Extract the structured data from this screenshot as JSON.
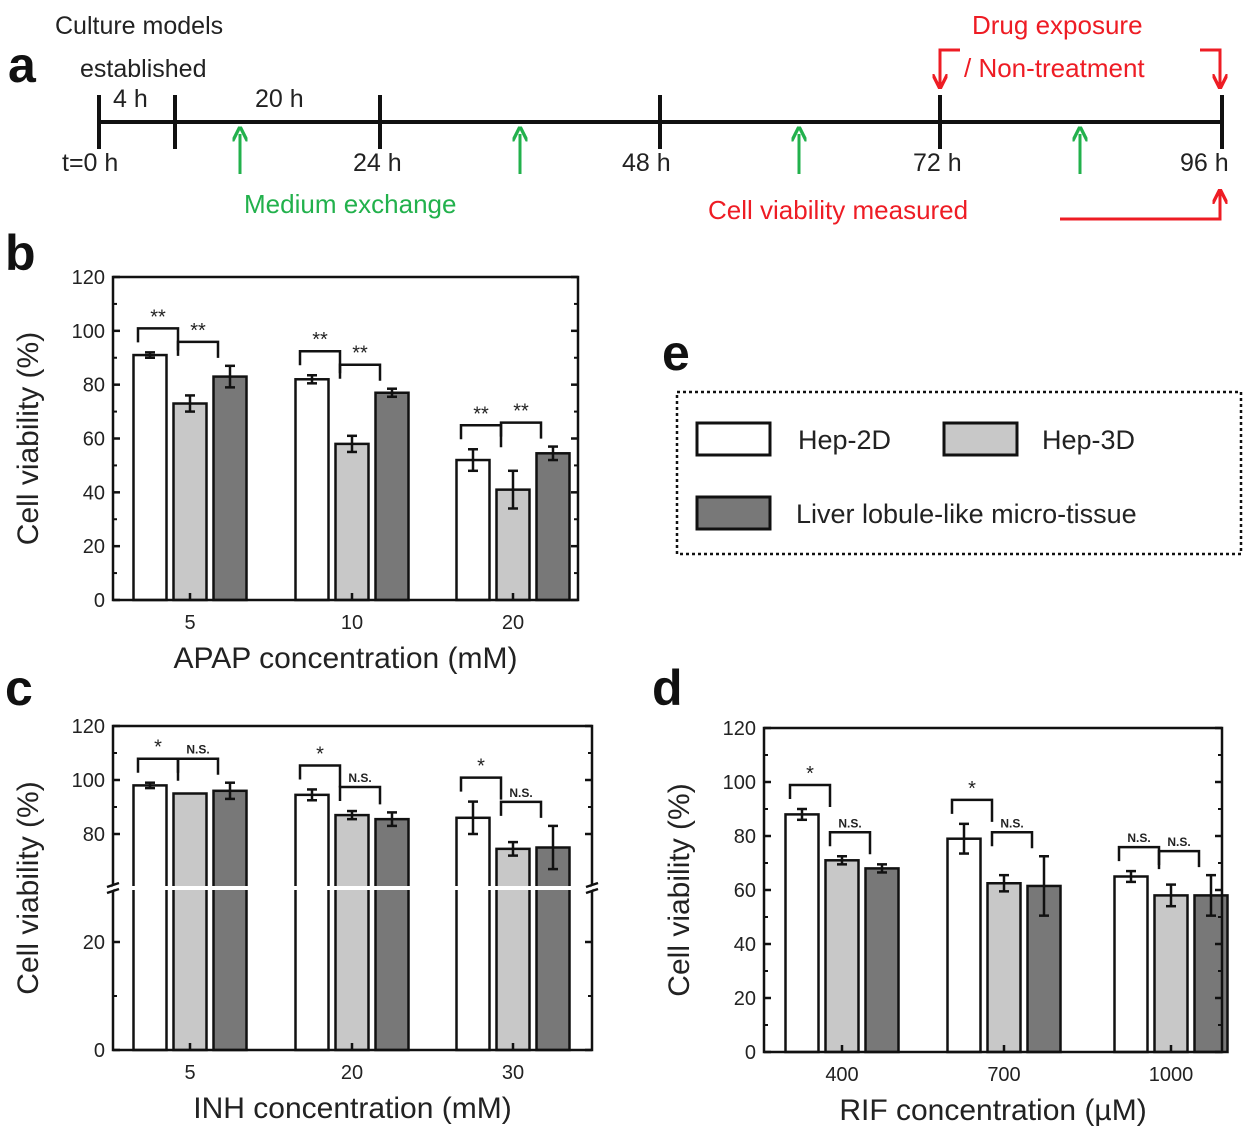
{
  "panels": {
    "a": "a",
    "b": "b",
    "c": "c",
    "d": "d",
    "e": "e"
  },
  "timeline": {
    "header_line1": "Culture models",
    "header_line2": "established",
    "interval_4h": "4 h",
    "interval_20h": "20 h",
    "ticks": [
      "t=0 h",
      "24 h",
      "48 h",
      "72 h",
      "96 h"
    ],
    "medium_exchange": "Medium exchange",
    "drug_exposure_line1": "Drug exposure",
    "drug_exposure_line2": "/ Non-treatment",
    "viability_measured": "Cell viability measured",
    "colors": {
      "green": "#22b14c",
      "red": "#ee1c24"
    }
  },
  "legend": {
    "entries": [
      "Hep-2D",
      "Hep-3D",
      "Liver lobule-like micro-tissue"
    ],
    "colors": [
      "#ffffff",
      "#c8c8c8",
      "#787878"
    ]
  },
  "chart_data": [
    {
      "panel": "b",
      "type": "bar",
      "xlabel": "APAP concentration (mM)",
      "ylabel": "Cell viability (%)",
      "ylim": [
        0,
        120
      ],
      "yticks": [
        "0",
        "20",
        "40",
        "60",
        "80",
        "100",
        "120"
      ],
      "categories": [
        "5",
        "10",
        "20"
      ],
      "series": [
        {
          "values": [
            91,
            82,
            52
          ],
          "errors": [
            1,
            1.5,
            4
          ]
        },
        {
          "values": [
            73,
            58,
            41
          ],
          "errors": [
            3,
            3,
            7
          ]
        },
        {
          "values": [
            83,
            77,
            54.5
          ],
          "errors": [
            4,
            1.5,
            2.5
          ]
        }
      ],
      "significance": [
        {
          "category": 0,
          "labels": [
            "**",
            "**"
          ]
        },
        {
          "category": 1,
          "labels": [
            "**",
            "**"
          ]
        },
        {
          "category": 2,
          "labels": [
            "**",
            "**"
          ]
        }
      ]
    },
    {
      "panel": "c",
      "type": "bar",
      "xlabel": "INH concentration (mM)",
      "ylabel": "Cell viability (%)",
      "ylim": [
        0,
        120
      ],
      "axis_break": [
        30,
        60
      ],
      "yticks": [
        "0",
        "20",
        "80",
        "100",
        "120"
      ],
      "categories": [
        "5",
        "20",
        "30"
      ],
      "series": [
        {
          "values": [
            98,
            94.5,
            86
          ],
          "errors": [
            1,
            2,
            6
          ]
        },
        {
          "values": [
            95,
            87,
            74.5
          ],
          "errors": [
            0,
            1.5,
            2.5
          ]
        },
        {
          "values": [
            96,
            85.5,
            75
          ],
          "errors": [
            3,
            2.5,
            8
          ]
        }
      ],
      "significance": [
        {
          "category": 0,
          "labels": [
            "*",
            "N.S."
          ]
        },
        {
          "category": 1,
          "labels": [
            "*",
            "N.S."
          ]
        },
        {
          "category": 2,
          "labels": [
            "*",
            "N.S."
          ]
        }
      ]
    },
    {
      "panel": "d",
      "type": "bar",
      "xlabel": "RIF concentration (µM)",
      "ylabel": "Cell viability (%)",
      "ylim": [
        0,
        120
      ],
      "yticks": [
        "0",
        "20",
        "40",
        "60",
        "80",
        "100",
        "120"
      ],
      "categories": [
        "400",
        "700",
        "1000"
      ],
      "series": [
        {
          "values": [
            88,
            79,
            65
          ],
          "errors": [
            2,
            5.5,
            2
          ]
        },
        {
          "values": [
            71,
            62.5,
            58
          ],
          "errors": [
            1.5,
            3,
            4
          ]
        },
        {
          "values": [
            68,
            61.5,
            58
          ],
          "errors": [
            1.5,
            11,
            7.5
          ]
        }
      ],
      "significance": [
        {
          "category": 0,
          "labels": [
            "*",
            "N.S."
          ]
        },
        {
          "category": 1,
          "labels": [
            "*",
            "N.S."
          ]
        },
        {
          "category": 2,
          "labels": [
            "N.S.",
            "N.S."
          ]
        }
      ]
    }
  ]
}
